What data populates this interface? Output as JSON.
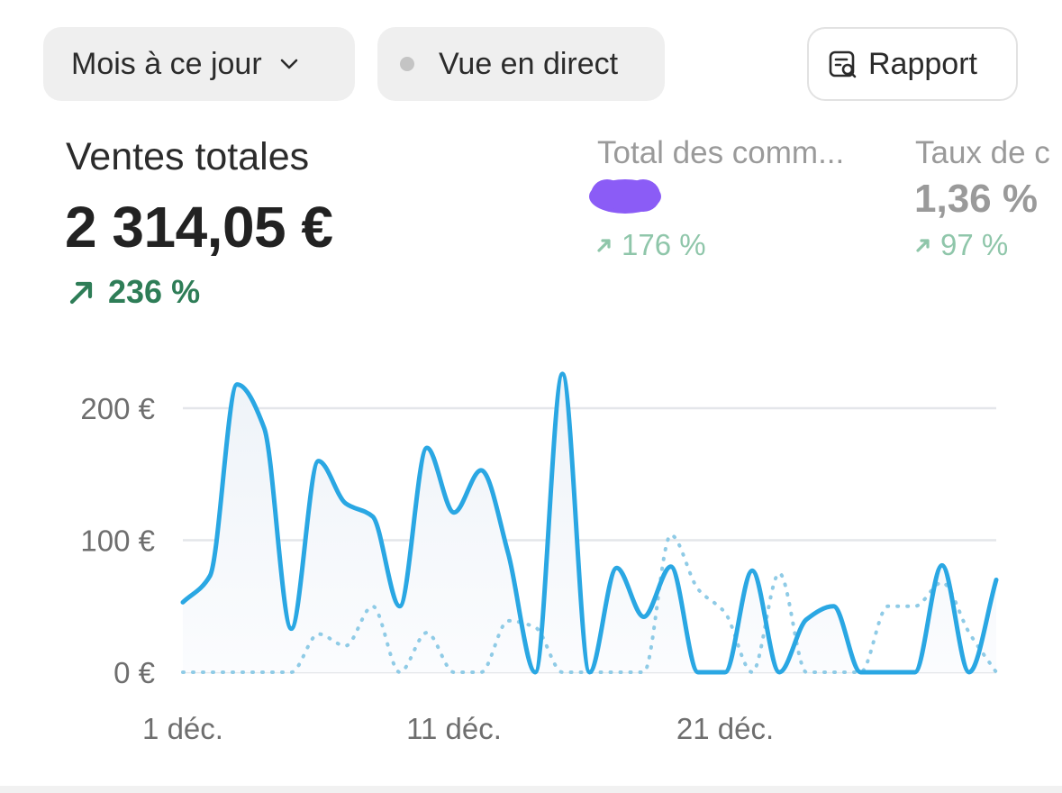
{
  "toolbar": {
    "period_label": "Mois à ce jour",
    "live_label": "Vue en direct",
    "report_label": "Rapport"
  },
  "metrics": {
    "sales": {
      "title": "Ventes totales",
      "value": "2 314,05 €",
      "change": "236 %"
    },
    "orders": {
      "title": "Total des comm...",
      "value": "",
      "change": "176 %"
    },
    "conversion": {
      "title": "Taux de c",
      "value": "1,36 %",
      "change": "97 %"
    }
  },
  "colors": {
    "current_series": "#2aa7e3",
    "previous_series": "#8fcbe6",
    "positive_trend": "#2e7d57",
    "muted_trend": "#8fc6aa",
    "redaction": "#8b5cf6"
  },
  "icons": {
    "period_dropdown": "chevron-down-icon",
    "live_status": "status-dot-icon",
    "report": "report-search-icon",
    "trend": "arrow-up-right-icon"
  },
  "chart_data": {
    "type": "line",
    "x": [
      "1 déc.",
      "2 déc.",
      "3 déc.",
      "4 déc.",
      "5 déc.",
      "6 déc.",
      "7 déc.",
      "8 déc.",
      "9 déc.",
      "10 déc.",
      "11 déc.",
      "12 déc.",
      "13 déc.",
      "14 déc.",
      "15 déc.",
      "16 déc.",
      "17 déc.",
      "18 déc.",
      "19 déc.",
      "20 déc.",
      "21 déc.",
      "22 déc.",
      "23 déc.",
      "24 déc.",
      "25 déc.",
      "26 déc.",
      "27 déc.",
      "28 déc.",
      "29 déc.",
      "30 déc.",
      "31 déc."
    ],
    "x_tick_labels": [
      "1 déc.",
      "11 déc.",
      "21 déc."
    ],
    "series": [
      {
        "values": [
          53,
          73,
          218,
          185,
          33,
          160,
          128,
          118,
          50,
          170,
          121,
          153,
          90,
          0,
          226,
          0,
          79,
          42,
          80,
          0,
          0,
          77,
          0,
          40,
          50,
          0,
          0,
          0,
          81,
          0,
          70
        ]
      },
      {
        "values": [
          0,
          0,
          0,
          0,
          0,
          29,
          20,
          50,
          0,
          30,
          0,
          0,
          39,
          34,
          0,
          0,
          0,
          0,
          104,
          63,
          45,
          0,
          75,
          0,
          0,
          0,
          50,
          50,
          68,
          30,
          0
        ]
      }
    ],
    "y_tick_labels": [
      "0 €",
      "100 €",
      "200 €"
    ],
    "ylim": [
      0,
      200
    ],
    "grid": true
  }
}
